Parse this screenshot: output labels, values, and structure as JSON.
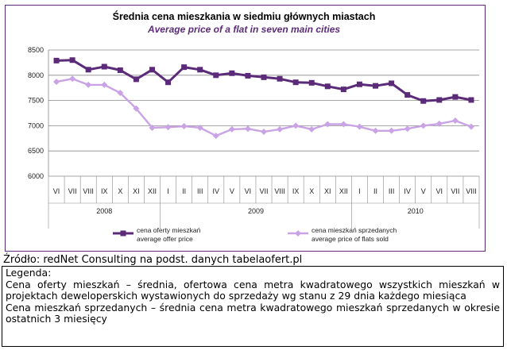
{
  "chart_data": {
    "type": "line",
    "title": "Średnia cena mieszkania w siedmiu głównych miastach",
    "subtitle": "Average price of a flat in seven main cities",
    "x": [
      "VI",
      "VII",
      "VIII",
      "IX",
      "X",
      "XI",
      "XII",
      "I",
      "II",
      "III",
      "IV",
      "V",
      "VI",
      "VII",
      "VIII",
      "IX",
      "X",
      "XI",
      "XII",
      "I",
      "II",
      "III",
      "IV",
      "V",
      "VI",
      "VII",
      "VIII"
    ],
    "year_groups": [
      {
        "label": "2008",
        "count": 7
      },
      {
        "label": "2009",
        "count": 12
      },
      {
        "label": "2010",
        "count": 8
      }
    ],
    "ylim": [
      6000,
      8500
    ],
    "yticks": [
      "6000",
      "6500",
      "7000",
      "7500",
      "8000",
      "8500"
    ],
    "grid": true,
    "legend_position": "bottom",
    "series": [
      {
        "name": "cena oferty mieszkań",
        "name_en": "average offer price",
        "color": "#5b2b7a",
        "marker": "square",
        "values": [
          8290,
          8300,
          8110,
          8170,
          8100,
          7920,
          8110,
          7860,
          8160,
          8110,
          8000,
          8040,
          7990,
          7960,
          7930,
          7860,
          7850,
          7780,
          7720,
          7820,
          7790,
          7840,
          7610,
          7490,
          7510,
          7570,
          7510
        ]
      },
      {
        "name": "cena mieszkań sprzedanych",
        "name_en": "average price of flats sold",
        "color": "#c9a3e6",
        "marker": "diamond",
        "values": [
          7870,
          7930,
          7810,
          7810,
          7650,
          7340,
          6960,
          6970,
          6990,
          6960,
          6800,
          6930,
          6940,
          6880,
          6930,
          7000,
          6930,
          7030,
          7030,
          6980,
          6900,
          6900,
          6940,
          7000,
          7040,
          7100,
          6980
        ]
      }
    ]
  },
  "source": "Źródło: redNet Consulting  na podst.  danych tabelaofert.pl",
  "legend_box": {
    "heading": "Legenda:",
    "item1": "Cena oferty mieszkań – średnia, ofertowa cena metra kwadratowego wszystkich mieszkań w projektach deweloperskich wystawionych do sprzedaży wg stanu z 29 dnia każdego miesiąca",
    "item2": "Cena mieszkań sprzedanych – średnia cena metra kwadratowego mieszkań sprzedanych w okresie ostatnich 3 miesięcy"
  }
}
